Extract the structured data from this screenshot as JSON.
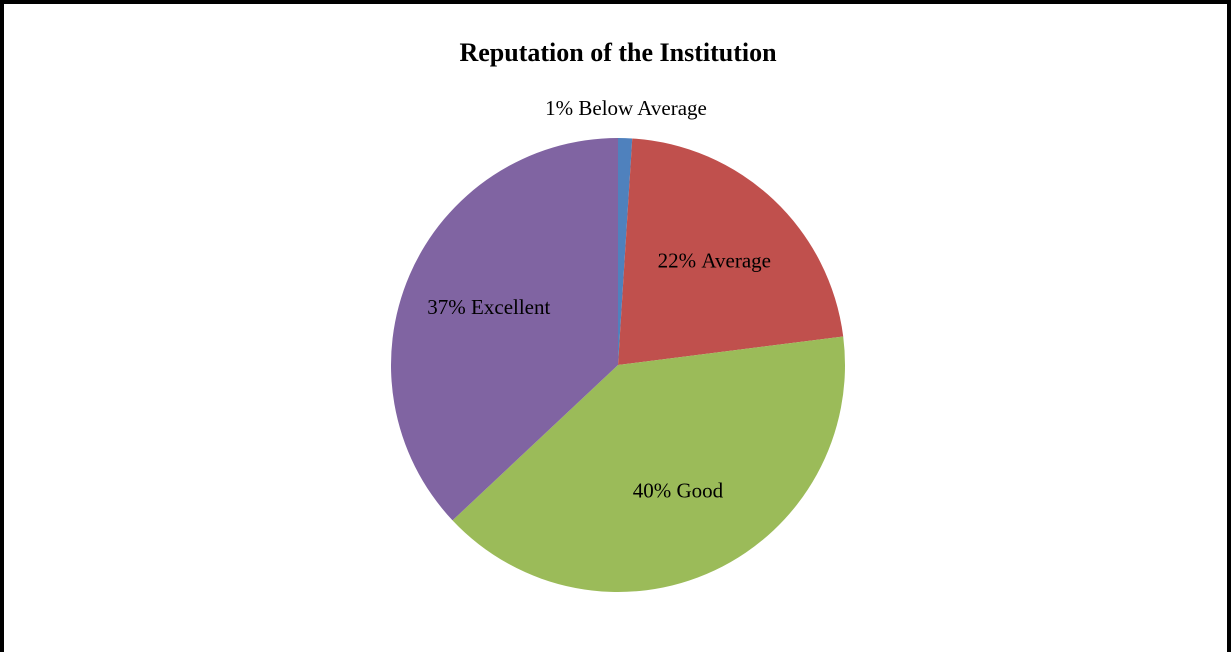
{
  "chart_data": {
    "type": "pie",
    "title": "Reputation of the Institution",
    "categories": [
      "Below Average",
      "Average",
      "Good",
      "Excellent"
    ],
    "values": [
      1,
      22,
      40,
      37
    ],
    "value_labels": [
      "1%",
      "22%",
      "40%",
      "37%"
    ],
    "colors": [
      "#4f81bd",
      "#c0504d",
      "#9bbb59",
      "#8064a2"
    ]
  }
}
